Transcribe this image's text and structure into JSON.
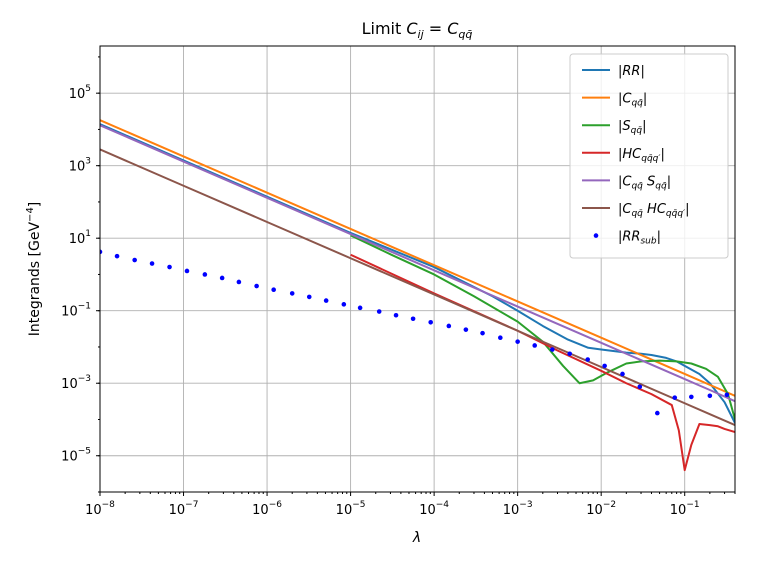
{
  "chart_data": {
    "type": "line",
    "title": "Limit C_ij = C_qq̄",
    "title_parts": {
      "prefix": "Limit ",
      "c1": "C",
      "s1": "ij",
      "eq": " = ",
      "c2": "C",
      "s2": "qq̄"
    },
    "xlabel": "λ",
    "ylabel": "Integrands [GeV⁻⁴]",
    "ylabel_parts": {
      "base": "Integrands [GeV",
      "sup": "−4",
      "close": "]"
    },
    "xscale": "log",
    "yscale": "log",
    "xlim": [
      1e-08,
      0.4
    ],
    "ylim": [
      1e-06,
      2000000.0
    ],
    "grid": true,
    "legend_position": "top-right",
    "x_ticks": [
      {
        "value": 1e-08,
        "base": "10",
        "exp": "−8"
      },
      {
        "value": 1e-07,
        "base": "10",
        "exp": "−7"
      },
      {
        "value": 1e-06,
        "base": "10",
        "exp": "−6"
      },
      {
        "value": 1e-05,
        "base": "10",
        "exp": "−5"
      },
      {
        "value": 0.0001,
        "base": "10",
        "exp": "−4"
      },
      {
        "value": 0.001,
        "base": "10",
        "exp": "−3"
      },
      {
        "value": 0.01,
        "base": "10",
        "exp": "−2"
      },
      {
        "value": 0.1,
        "base": "10",
        "exp": "−1"
      }
    ],
    "y_ticks": [
      {
        "value": 100000.0,
        "base": "10",
        "exp": "5"
      },
      {
        "value": 1000.0,
        "base": "10",
        "exp": "3"
      },
      {
        "value": 10.0,
        "base": "10",
        "exp": "1"
      },
      {
        "value": 0.1,
        "base": "10",
        "exp": "−1"
      },
      {
        "value": 0.001,
        "base": "10",
        "exp": "−3"
      },
      {
        "value": 1e-05,
        "base": "10",
        "exp": "−5"
      }
    ],
    "series": [
      {
        "name": "|RR|",
        "label_parts": {
          "main": "RR",
          "sub": ""
        },
        "color": "#1f77b4",
        "style": "line",
        "x": [
          1e-08,
          1e-07,
          1e-06,
          1e-05,
          0.0001,
          0.0005,
          0.001,
          0.002,
          0.004,
          0.007,
          0.01,
          0.02,
          0.03,
          0.04,
          0.06,
          0.08,
          0.1,
          0.15,
          0.2,
          0.3,
          0.4
        ],
        "y": [
          14000,
          1400,
          140,
          14,
          1.6,
          0.25,
          0.1,
          0.038,
          0.016,
          0.0095,
          0.0085,
          0.007,
          0.0065,
          0.006,
          0.005,
          0.004,
          0.003,
          0.0018,
          0.001,
          0.0003,
          8e-05
        ]
      },
      {
        "name": "|C_qq̄|",
        "label_parts": {
          "main": "C",
          "sub": "qq̄"
        },
        "color": "#ff7f0e",
        "style": "line",
        "x": [
          1e-08,
          1e-07,
          1e-06,
          1e-05,
          0.0001,
          0.001,
          0.01,
          0.1,
          0.2,
          0.3,
          0.4
        ],
        "y": [
          18000,
          1800,
          180,
          18,
          1.8,
          0.18,
          0.018,
          0.0018,
          0.0009,
          0.0006,
          0.00045
        ]
      },
      {
        "name": "|S_qq̄|",
        "label_parts": {
          "main": "S",
          "sub": "qq̄"
        },
        "color": "#2ca02c",
        "style": "line",
        "x": [
          1e-05,
          3e-05,
          0.0001,
          0.0003,
          0.001,
          0.002,
          0.0035,
          0.0055,
          0.008,
          0.012,
          0.02,
          0.03,
          0.05,
          0.08,
          0.12,
          0.18,
          0.25,
          0.33,
          0.4
        ],
        "y": [
          12,
          3.6,
          1.0,
          0.25,
          0.05,
          0.014,
          0.003,
          0.001,
          0.0012,
          0.002,
          0.0035,
          0.004,
          0.0042,
          0.004,
          0.0035,
          0.0025,
          0.0015,
          0.0005,
          0.0001
        ]
      },
      {
        "name": "|HC_qq̄q'|",
        "label_parts": {
          "main": "HC",
          "sub": "qq̄q′"
        },
        "color": "#d62728",
        "style": "line",
        "x": [
          1e-05,
          0.0001,
          0.001,
          0.003,
          0.01,
          0.02,
          0.04,
          0.07,
          0.085,
          0.1,
          0.12,
          0.15,
          0.2,
          0.25,
          0.3,
          0.4
        ],
        "y": [
          3.5,
          0.3,
          0.028,
          0.008,
          0.0022,
          0.001,
          0.0005,
          0.00025,
          5e-05,
          4e-06,
          2e-05,
          7.5e-05,
          7e-05,
          6.5e-05,
          5.5e-05,
          4.5e-05
        ]
      },
      {
        "name": "|C_qq̄ S_qq̄|",
        "label_parts": {
          "main": "C",
          "sub": "qq̄",
          "main2": "S",
          "sub2": "qq̄"
        },
        "color": "#9467bd",
        "style": "line",
        "x": [
          1e-08,
          1e-07,
          1e-06,
          1e-05,
          0.0001,
          0.001,
          0.01,
          0.1,
          0.2,
          0.4
        ],
        "y": [
          13000,
          1300,
          130,
          13,
          1.3,
          0.13,
          0.013,
          0.0013,
          0.00065,
          0.00032
        ]
      },
      {
        "name": "|C_qq̄ HC_qq̄q'|",
        "label_parts": {
          "main": "C",
          "sub": "qq̄",
          "main2": "HC",
          "sub2": "qq̄q′"
        },
        "color": "#8c564b",
        "style": "line",
        "x": [
          1e-08,
          1e-07,
          1e-06,
          1e-05,
          0.0001,
          0.001,
          0.01,
          0.1,
          0.2,
          0.4
        ],
        "y": [
          2800,
          280,
          28,
          2.8,
          0.28,
          0.028,
          0.0028,
          0.00028,
          0.00014,
          7e-05
        ]
      },
      {
        "name": "|RR_sub|",
        "label_parts": {
          "main": "RR",
          "sub": "sub"
        },
        "color": "#0000ff",
        "style": "dots",
        "x": [
          1e-08,
          1.6e-08,
          2.6e-08,
          4.2e-08,
          6.8e-08,
          1.1e-07,
          1.8e-07,
          2.9e-07,
          4.6e-07,
          7.5e-07,
          1.2e-06,
          2e-06,
          3.2e-06,
          5.1e-06,
          8.3e-06,
          1.3e-05,
          2.2e-05,
          3.5e-05,
          5.6e-05,
          9.1e-05,
          0.00015,
          0.00024,
          0.00038,
          0.00062,
          0.001,
          0.0016,
          0.0026,
          0.0042,
          0.0069,
          0.011,
          0.018,
          0.029,
          0.047,
          0.076,
          0.12,
          0.2,
          0.32
        ],
        "y": [
          4.2,
          3.2,
          2.5,
          2.0,
          1.6,
          1.25,
          1.0,
          0.8,
          0.62,
          0.48,
          0.38,
          0.3,
          0.24,
          0.19,
          0.15,
          0.12,
          0.095,
          0.075,
          0.06,
          0.048,
          0.038,
          0.03,
          0.024,
          0.018,
          0.014,
          0.011,
          0.0085,
          0.0065,
          0.0045,
          0.003,
          0.0018,
          0.0008,
          0.00015,
          0.0004,
          0.00042,
          0.00045,
          0.00048
        ]
      }
    ]
  }
}
